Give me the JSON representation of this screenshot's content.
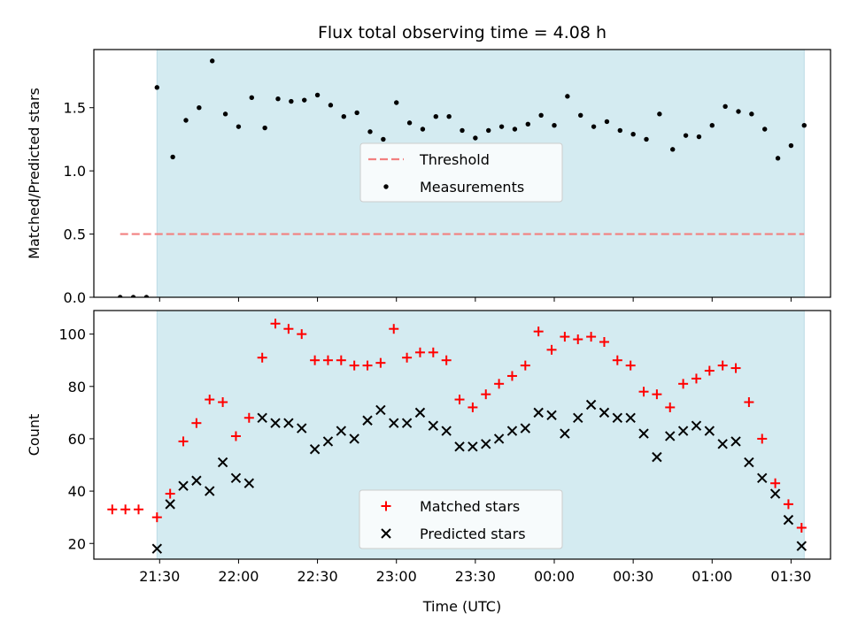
{
  "colors": {
    "shade": "#d4ebf1",
    "threshold": "#f28080",
    "matched": "#ff0000",
    "predicted": "#000000",
    "measurement": "#000000"
  },
  "chart_data": [
    {
      "type": "scatter",
      "panel": "top",
      "title": "Flux total observing time = 4.08 h",
      "xlabel": "",
      "ylabel": "Matched/Predicted stars",
      "xlim": [
        "21:05",
        "01:45"
      ],
      "ylim": [
        0,
        1.96
      ],
      "yticks": [
        0.0,
        0.5,
        1.0,
        1.5
      ],
      "ytick_labels": [
        "0.0",
        "0.5",
        "1.0",
        "1.5"
      ],
      "shaded_span": [
        "21:29",
        "01:35"
      ],
      "legend": {
        "placement": "center",
        "entries": [
          "Threshold",
          "Measurements"
        ]
      },
      "series": [
        {
          "name": "Threshold",
          "kind": "dashed-line",
          "x": [
            "21:15",
            "01:35"
          ],
          "y": [
            0.5,
            0.5
          ]
        },
        {
          "name": "Measurements",
          "kind": "points",
          "x": [
            "21:15",
            "21:20",
            "21:25",
            "21:29",
            "21:35",
            "21:40",
            "21:45",
            "21:50",
            "21:55",
            "22:00",
            "22:05",
            "22:10",
            "22:15",
            "22:20",
            "22:25",
            "22:30",
            "22:35",
            "22:40",
            "22:45",
            "22:50",
            "22:55",
            "23:00",
            "23:05",
            "23:10",
            "23:15",
            "23:20",
            "23:25",
            "23:30",
            "23:35",
            "23:40",
            "23:45",
            "23:50",
            "23:55",
            "00:00",
            "00:05",
            "00:10",
            "00:15",
            "00:20",
            "00:25",
            "00:30",
            "00:35",
            "00:40",
            "00:45",
            "00:50",
            "00:55",
            "01:00",
            "01:05",
            "01:10",
            "01:15",
            "01:20",
            "01:25",
            "01:30",
            "01:35"
          ],
          "y": [
            0.0,
            0.0,
            0.0,
            1.66,
            1.11,
            1.4,
            1.5,
            1.87,
            1.45,
            1.35,
            1.58,
            1.34,
            1.57,
            1.55,
            1.56,
            1.6,
            1.52,
            1.43,
            1.46,
            1.31,
            1.25,
            1.54,
            1.38,
            1.33,
            1.43,
            1.43,
            1.32,
            1.26,
            1.32,
            1.35,
            1.33,
            1.37,
            1.44,
            1.36,
            1.59,
            1.44,
            1.35,
            1.39,
            1.32,
            1.29,
            1.25,
            1.45,
            1.17,
            1.28,
            1.27,
            1.36,
            1.51,
            1.47,
            1.45,
            1.33,
            1.1,
            1.2,
            1.36
          ]
        }
      ]
    },
    {
      "type": "scatter",
      "panel": "bottom",
      "title": "",
      "xlabel": "Time (UTC)",
      "ylabel": "Count",
      "xlim": [
        "21:05",
        "01:45"
      ],
      "ylim": [
        14,
        109
      ],
      "yticks": [
        20,
        40,
        60,
        80,
        100
      ],
      "ytick_labels": [
        "20",
        "40",
        "60",
        "80",
        "100"
      ],
      "xticks": [
        "21:30",
        "22:00",
        "22:30",
        "23:00",
        "23:30",
        "00:00",
        "00:30",
        "01:00",
        "01:30"
      ],
      "xtick_labels": [
        "21:30",
        "22:00",
        "22:30",
        "23:00",
        "23:30",
        "00:00",
        "00:30",
        "01:00",
        "01:30"
      ],
      "shaded_span": [
        "21:29",
        "01:35"
      ],
      "legend": {
        "placement": "lower center",
        "entries": [
          "Matched stars",
          "Predicted stars"
        ]
      },
      "series": [
        {
          "name": "Matched stars",
          "kind": "plus",
          "x": [
            "21:12",
            "21:17",
            "21:22",
            "21:29",
            "21:34",
            "21:39",
            "21:44",
            "21:49",
            "21:54",
            "21:59",
            "22:04",
            "22:09",
            "22:14",
            "22:19",
            "22:24",
            "22:29",
            "22:34",
            "22:39",
            "22:44",
            "22:49",
            "22:54",
            "22:59",
            "23:04",
            "23:09",
            "23:14",
            "23:19",
            "23:24",
            "23:29",
            "23:34",
            "23:39",
            "23:44",
            "23:49",
            "23:54",
            "23:59",
            "00:04",
            "00:09",
            "00:14",
            "00:19",
            "00:24",
            "00:29",
            "00:34",
            "00:39",
            "00:44",
            "00:49",
            "00:54",
            "00:59",
            "01:04",
            "01:09",
            "01:14",
            "01:19",
            "01:24",
            "01:29",
            "01:34"
          ],
          "y": [
            33,
            33,
            33,
            30,
            39,
            59,
            66,
            75,
            74,
            61,
            68,
            91,
            104,
            102,
            100,
            90,
            90,
            90,
            88,
            88,
            89,
            102,
            91,
            93,
            93,
            90,
            75,
            72,
            77,
            81,
            84,
            88,
            101,
            94,
            99,
            98,
            99,
            97,
            90,
            88,
            78,
            77,
            72,
            81,
            83,
            86,
            88,
            87,
            74,
            60,
            43,
            35,
            26
          ]
        },
        {
          "name": "Predicted stars",
          "kind": "x",
          "x": [
            "21:29",
            "21:34",
            "21:39",
            "21:44",
            "21:49",
            "21:54",
            "21:59",
            "22:04",
            "22:09",
            "22:14",
            "22:19",
            "22:24",
            "22:29",
            "22:34",
            "22:39",
            "22:44",
            "22:49",
            "22:54",
            "22:59",
            "23:04",
            "23:09",
            "23:14",
            "23:19",
            "23:24",
            "23:29",
            "23:34",
            "23:39",
            "23:44",
            "23:49",
            "23:54",
            "23:59",
            "00:04",
            "00:09",
            "00:14",
            "00:19",
            "00:24",
            "00:29",
            "00:34",
            "00:39",
            "00:44",
            "00:49",
            "00:54",
            "00:59",
            "01:04",
            "01:09",
            "01:14",
            "01:19",
            "01:24",
            "01:29",
            "01:34"
          ],
          "y": [
            18,
            35,
            42,
            44,
            40,
            51,
            45,
            43,
            68,
            66,
            66,
            64,
            56,
            59,
            63,
            60,
            67,
            71,
            66,
            66,
            70,
            65,
            63,
            57,
            57,
            58,
            60,
            63,
            64,
            70,
            69,
            62,
            68,
            73,
            70,
            68,
            68,
            62,
            53,
            61,
            63,
            65,
            63,
            58,
            59,
            51,
            45,
            39,
            29,
            19
          ]
        }
      ]
    }
  ]
}
